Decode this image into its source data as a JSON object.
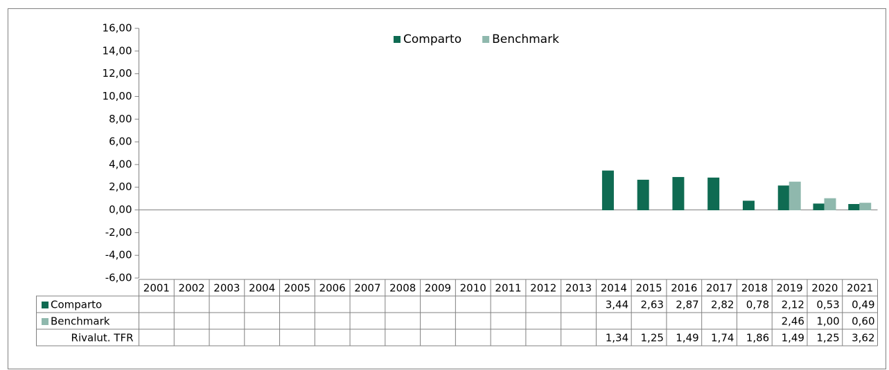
{
  "chart_data": {
    "type": "bar",
    "categories": [
      "2001",
      "2002",
      "2003",
      "2004",
      "2005",
      "2006",
      "2007",
      "2008",
      "2009",
      "2010",
      "2011",
      "2012",
      "2013",
      "2014",
      "2015",
      "2016",
      "2017",
      "2018",
      "2019",
      "2020",
      "2021"
    ],
    "series": [
      {
        "name": "Comparto",
        "color": "#0f6b52",
        "values": [
          null,
          null,
          null,
          null,
          null,
          null,
          null,
          null,
          null,
          null,
          null,
          null,
          null,
          3.44,
          2.63,
          2.87,
          2.82,
          0.78,
          2.12,
          0.53,
          0.49
        ],
        "value_labels": [
          null,
          null,
          null,
          null,
          null,
          null,
          null,
          null,
          null,
          null,
          null,
          null,
          null,
          "3,44",
          "2,63",
          "2,87",
          "2,82",
          "0,78",
          "2,12",
          "0,53",
          "0,49"
        ]
      },
      {
        "name": "Benchmark",
        "color": "#8fb8ad",
        "values": [
          null,
          null,
          null,
          null,
          null,
          null,
          null,
          null,
          null,
          null,
          null,
          null,
          null,
          null,
          null,
          null,
          null,
          null,
          2.46,
          1.0,
          0.6
        ],
        "value_labels": [
          null,
          null,
          null,
          null,
          null,
          null,
          null,
          null,
          null,
          null,
          null,
          null,
          null,
          null,
          null,
          null,
          null,
          null,
          "2,46",
          "1,00",
          "0,60"
        ]
      },
      {
        "name": "Rivalut. TFR",
        "values": [
          null,
          null,
          null,
          null,
          null,
          null,
          null,
          null,
          null,
          null,
          null,
          null,
          null,
          1.34,
          1.25,
          1.49,
          1.74,
          1.86,
          1.49,
          1.25,
          3.62
        ],
        "value_labels": [
          null,
          null,
          null,
          null,
          null,
          null,
          null,
          null,
          null,
          null,
          null,
          null,
          null,
          "1,34",
          "1,25",
          "1,49",
          "1,74",
          "1,86",
          "1,49",
          "1,25",
          "3,62"
        ]
      }
    ],
    "ylim": [
      -6,
      16
    ],
    "yticks": [
      {
        "value": -6,
        "label": "-6,00"
      },
      {
        "value": -4,
        "label": "-4,00"
      },
      {
        "value": -2,
        "label": "-2,00"
      },
      {
        "value": 0,
        "label": "0,00"
      },
      {
        "value": 2,
        "label": "2,00"
      },
      {
        "value": 4,
        "label": "4,00"
      },
      {
        "value": 6,
        "label": "6,00"
      },
      {
        "value": 8,
        "label": "8,00"
      },
      {
        "value": 10,
        "label": "10,00"
      },
      {
        "value": 12,
        "label": "12,00"
      },
      {
        "value": 14,
        "label": "14,00"
      },
      {
        "value": 16,
        "label": "16,00"
      }
    ],
    "legend": "top",
    "grid": false
  }
}
